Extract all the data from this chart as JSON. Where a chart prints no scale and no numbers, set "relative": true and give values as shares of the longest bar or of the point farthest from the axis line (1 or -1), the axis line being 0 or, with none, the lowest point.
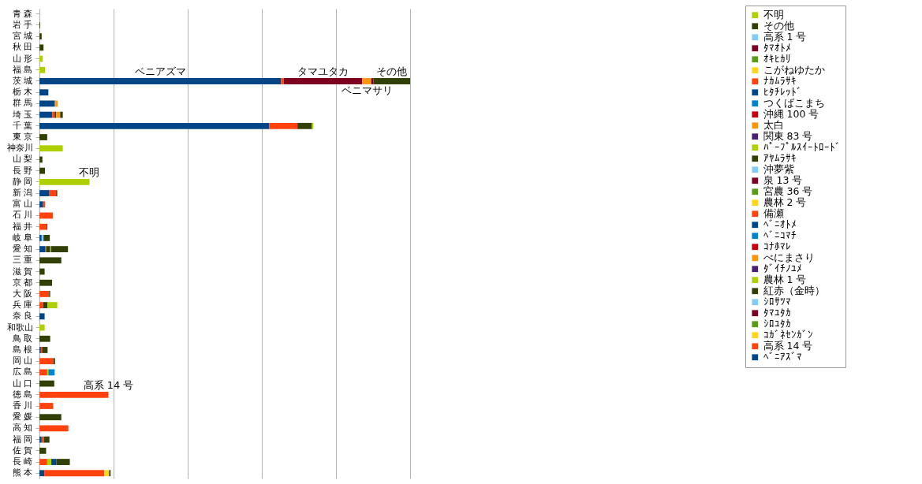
{
  "chart_data": {
    "type": "bar",
    "orientation": "horizontal",
    "stacked": true,
    "relative": true,
    "grid": "x",
    "legend": "top right",
    "categories": [
      "青 森",
      "岩 手",
      "宮 城",
      "秋 田",
      "山 形",
      "福 島",
      "茨 城",
      "栃 木",
      "群 馬",
      "埼 玉",
      "千 葉",
      "東 京",
      "神奈川",
      "山 梨",
      "長 野",
      "静 岡",
      "新 潟",
      "富 山",
      "石 川",
      "福 井",
      "岐 阜",
      "愛 知",
      "三 重",
      "滋 賀",
      "京 都",
      "大 阪",
      "兵 庫",
      "奈 良",
      "和歌山",
      "鳥 取",
      "島 根",
      "岡 山",
      "広 島",
      "山 口",
      "徳 島",
      "香 川",
      "愛 媛",
      "高 知",
      "福 岡",
      "佐 賀",
      "長 崎",
      "熊 本"
    ],
    "annotations": [
      {
        "text": "ベニアズマ",
        "x": 0.326,
        "y": "茨 城"
      },
      {
        "text": "タマユタカ",
        "x": 0.765,
        "y": "茨 城"
      },
      {
        "text": "その他",
        "x": 0.95,
        "y": "茨 城"
      },
      {
        "text": "ベニマサリ",
        "x": 0.883,
        "y": "茨 城"
      },
      {
        "text": "不明",
        "x": 0.135,
        "y": "静 岡"
      },
      {
        "text": "高系 14 号",
        "x": 0.186,
        "y": "徳 島"
      }
    ],
    "series": [
      {
        "name": "ﾍﾞﾆｱｽﾞﾏ",
        "color": "#004586",
        "values": [
          null,
          null,
          null,
          null,
          null,
          null,
          0.652,
          0.024,
          0.041,
          0.035,
          0.62,
          null,
          null,
          null,
          null,
          null,
          0.027,
          0.01,
          null,
          null,
          0.006,
          0.015,
          null,
          null,
          null,
          null,
          null,
          0.014,
          null,
          null,
          0.004,
          null,
          null,
          null,
          null,
          null,
          null,
          null,
          0.006,
          null,
          null,
          0.013
        ]
      },
      {
        "name": "高系 14 号",
        "color": "#ff420e",
        "values": [
          null,
          null,
          null,
          null,
          null,
          null,
          0.007,
          null,
          0.002,
          0.006,
          0.076,
          null,
          null,
          null,
          null,
          null,
          0.018,
          0.005,
          0.036,
          0.019,
          null,
          0.003,
          null,
          null,
          null,
          0.026,
          0.01,
          null,
          null,
          null,
          0.003,
          0.038,
          0.021,
          null,
          0.186,
          0.037,
          null,
          0.078,
          0.006,
          null,
          0.021,
          0.162
        ]
      },
      {
        "name": "ｺｶﾞﾈｾﾝｶﾞﾝ",
        "color": "#ffd320",
        "values": [
          null,
          null,
          null,
          null,
          null,
          null,
          null,
          null,
          null,
          null,
          null,
          null,
          null,
          null,
          null,
          null,
          null,
          null,
          null,
          null,
          null,
          null,
          null,
          null,
          null,
          null,
          null,
          null,
          null,
          null,
          null,
          null,
          null,
          null,
          null,
          null,
          null,
          null,
          null,
          null,
          null,
          0.013
        ]
      },
      {
        "name": "ｼﾛﾕﾀｶ",
        "color": "#579d1c",
        "values": [
          null,
          null,
          null,
          null,
          null,
          null,
          null,
          null,
          null,
          null,
          null,
          null,
          null,
          null,
          null,
          null,
          null,
          null,
          null,
          null,
          null,
          null,
          null,
          null,
          null,
          null,
          null,
          null,
          null,
          null,
          null,
          null,
          null,
          null,
          null,
          null,
          null,
          null,
          null,
          null,
          null,
          null
        ]
      },
      {
        "name": "ﾀﾏﾕﾀｶ",
        "color": "#7e0021",
        "values": [
          null,
          null,
          null,
          null,
          null,
          null,
          0.212,
          null,
          null,
          null,
          null,
          null,
          null,
          null,
          null,
          null,
          null,
          null,
          null,
          null,
          null,
          null,
          null,
          null,
          null,
          null,
          null,
          null,
          null,
          null,
          null,
          null,
          null,
          null,
          null,
          null,
          null,
          null,
          null,
          null,
          null,
          null
        ]
      },
      {
        "name": "ｼﾛｻﾂﾏ",
        "color": "#83caff",
        "values": [
          null,
          null,
          null,
          null,
          null,
          null,
          null,
          null,
          null,
          null,
          null,
          null,
          null,
          null,
          null,
          null,
          null,
          null,
          null,
          null,
          0.005,
          null,
          null,
          null,
          null,
          null,
          null,
          null,
          null,
          null,
          null,
          null,
          null,
          null,
          null,
          null,
          null,
          null,
          null,
          null,
          null,
          null
        ]
      },
      {
        "name": "紅赤（金時）",
        "color": "#314004",
        "values": [
          null,
          null,
          null,
          null,
          null,
          null,
          null,
          null,
          null,
          0.004,
          null,
          null,
          null,
          null,
          null,
          null,
          null,
          null,
          null,
          null,
          null,
          0.011,
          null,
          null,
          null,
          null,
          null,
          null,
          null,
          null,
          null,
          null,
          null,
          null,
          null,
          null,
          null,
          null,
          null,
          null,
          null,
          null
        ]
      },
      {
        "name": "農林 1 号",
        "color": "#aecf00",
        "values": [
          null,
          null,
          null,
          null,
          null,
          null,
          null,
          null,
          null,
          null,
          null,
          null,
          null,
          null,
          null,
          null,
          null,
          null,
          null,
          null,
          null,
          0.002,
          null,
          null,
          null,
          null,
          null,
          null,
          null,
          null,
          null,
          null,
          0.003,
          null,
          null,
          null,
          null,
          null,
          null,
          null,
          0.011,
          null
        ]
      },
      {
        "name": "ﾀﾞｲﾁﾉﾕﾒ",
        "color": "#4b1f6f",
        "values": [
          null,
          null,
          null,
          null,
          null,
          null,
          null,
          null,
          null,
          null,
          null,
          null,
          null,
          null,
          null,
          null,
          null,
          null,
          null,
          null,
          null,
          null,
          null,
          null,
          null,
          null,
          null,
          null,
          null,
          null,
          null,
          null,
          null,
          null,
          null,
          null,
          null,
          null,
          null,
          null,
          null,
          null
        ]
      },
      {
        "name": "べにまさり",
        "color": "#ff950e",
        "values": [
          null,
          null,
          null,
          null,
          null,
          null,
          0.024,
          null,
          0.006,
          0.011,
          null,
          null,
          null,
          null,
          null,
          null,
          null,
          null,
          null,
          null,
          null,
          null,
          null,
          null,
          null,
          null,
          null,
          null,
          null,
          null,
          null,
          null,
          null,
          null,
          null,
          null,
          null,
          null,
          null,
          null,
          null,
          null
        ]
      },
      {
        "name": "ｺﾅﾎﾏﾚ",
        "color": "#c5000b",
        "values": [
          null,
          null,
          null,
          null,
          null,
          null,
          null,
          null,
          null,
          null,
          null,
          null,
          null,
          null,
          null,
          null,
          null,
          null,
          null,
          null,
          null,
          null,
          null,
          null,
          null,
          null,
          null,
          null,
          null,
          null,
          null,
          null,
          null,
          null,
          null,
          null,
          null,
          null,
          null,
          null,
          null,
          null
        ]
      },
      {
        "name": "ﾍﾞﾆｺﾏﾁ",
        "color": "#0084d1",
        "values": [
          null,
          null,
          null,
          null,
          null,
          null,
          null,
          null,
          null,
          null,
          null,
          null,
          null,
          null,
          null,
          null,
          null,
          null,
          null,
          null,
          null,
          null,
          null,
          null,
          null,
          null,
          null,
          null,
          null,
          null,
          null,
          null,
          0.017,
          null,
          null,
          null,
          null,
          null,
          null,
          null,
          null,
          null
        ]
      },
      {
        "name": "ﾍﾞﾆｵﾄﾒ",
        "color": "#004586",
        "values": [
          null,
          null,
          null,
          null,
          null,
          null,
          null,
          null,
          null,
          null,
          null,
          null,
          null,
          null,
          null,
          null,
          null,
          null,
          null,
          null,
          null,
          null,
          null,
          null,
          null,
          null,
          null,
          null,
          null,
          null,
          null,
          null,
          null,
          null,
          null,
          null,
          null,
          null,
          null,
          null,
          0.014,
          null
        ]
      },
      {
        "name": "備瀬",
        "color": "#ff420e",
        "values": [
          null,
          null,
          null,
          null,
          null,
          null,
          null,
          null,
          null,
          null,
          null,
          null,
          null,
          null,
          null,
          null,
          null,
          null,
          null,
          null,
          null,
          null,
          null,
          null,
          null,
          null,
          null,
          null,
          null,
          null,
          null,
          null,
          null,
          null,
          null,
          null,
          null,
          null,
          null,
          null,
          null,
          null
        ]
      },
      {
        "name": "農林 2 号",
        "color": "#ffd320",
        "values": [
          null,
          null,
          null,
          null,
          null,
          null,
          null,
          null,
          null,
          null,
          null,
          null,
          null,
          null,
          null,
          null,
          null,
          null,
          null,
          null,
          null,
          null,
          null,
          null,
          null,
          null,
          null,
          null,
          null,
          null,
          null,
          null,
          null,
          null,
          null,
          null,
          null,
          null,
          null,
          null,
          null,
          null
        ]
      },
      {
        "name": "宮農 36 号",
        "color": "#579d1c",
        "values": [
          null,
          null,
          null,
          null,
          null,
          null,
          null,
          null,
          null,
          null,
          null,
          null,
          null,
          null,
          null,
          null,
          null,
          null,
          null,
          null,
          null,
          null,
          null,
          null,
          null,
          null,
          null,
          null,
          null,
          null,
          null,
          null,
          null,
          null,
          null,
          null,
          null,
          null,
          null,
          null,
          null,
          null
        ]
      },
      {
        "name": "泉 13 号",
        "color": "#7e0021",
        "values": [
          null,
          null,
          null,
          null,
          null,
          null,
          0.006,
          null,
          null,
          null,
          null,
          null,
          null,
          null,
          null,
          null,
          null,
          null,
          null,
          null,
          null,
          null,
          null,
          null,
          null,
          null,
          null,
          null,
          null,
          null,
          null,
          null,
          null,
          null,
          null,
          null,
          null,
          null,
          null,
          null,
          null,
          null
        ]
      },
      {
        "name": "沖夢紫",
        "color": "#83caff",
        "values": [
          null,
          null,
          null,
          null,
          null,
          null,
          null,
          null,
          null,
          null,
          null,
          null,
          null,
          null,
          null,
          null,
          null,
          null,
          null,
          null,
          null,
          null,
          null,
          null,
          null,
          null,
          null,
          null,
          null,
          null,
          null,
          null,
          null,
          null,
          null,
          null,
          null,
          null,
          null,
          null,
          null,
          null
        ]
      },
      {
        "name": "ｱﾔﾑﾗｻｷ",
        "color": "#314004",
        "values": [
          null,
          null,
          null,
          null,
          null,
          null,
          null,
          null,
          null,
          null,
          null,
          null,
          null,
          null,
          null,
          null,
          null,
          null,
          null,
          null,
          null,
          null,
          null,
          null,
          null,
          null,
          null,
          null,
          null,
          null,
          null,
          null,
          null,
          null,
          null,
          null,
          null,
          null,
          null,
          null,
          null,
          null
        ]
      },
      {
        "name": "ﾊﾟｰﾌﾟﾙｽｲｰﾄﾛｰﾄﾞ",
        "color": "#aecf00",
        "values": [
          null,
          null,
          null,
          null,
          null,
          null,
          null,
          null,
          null,
          null,
          null,
          null,
          null,
          null,
          null,
          null,
          null,
          null,
          null,
          null,
          null,
          null,
          null,
          null,
          null,
          null,
          null,
          null,
          null,
          null,
          null,
          null,
          null,
          null,
          null,
          null,
          null,
          null,
          null,
          null,
          null,
          null
        ]
      },
      {
        "name": "関東 83 号",
        "color": "#4b1f6f",
        "values": [
          null,
          null,
          null,
          null,
          null,
          null,
          null,
          null,
          null,
          null,
          null,
          null,
          null,
          null,
          null,
          null,
          null,
          null,
          null,
          null,
          null,
          null,
          null,
          null,
          null,
          null,
          null,
          null,
          null,
          null,
          null,
          null,
          null,
          null,
          null,
          null,
          null,
          null,
          null,
          null,
          null,
          null
        ]
      },
      {
        "name": "太白",
        "color": "#ff950e",
        "values": [
          null,
          null,
          null,
          null,
          null,
          null,
          null,
          null,
          null,
          null,
          null,
          null,
          null,
          null,
          null,
          null,
          null,
          null,
          null,
          null,
          null,
          null,
          null,
          null,
          null,
          null,
          null,
          null,
          null,
          null,
          null,
          null,
          null,
          null,
          null,
          null,
          null,
          null,
          null,
          null,
          null,
          null
        ]
      },
      {
        "name": "沖縄 100 号",
        "color": "#c5000b",
        "values": [
          null,
          null,
          null,
          null,
          null,
          null,
          null,
          null,
          null,
          null,
          null,
          null,
          null,
          null,
          null,
          null,
          null,
          null,
          null,
          null,
          null,
          null,
          null,
          null,
          null,
          null,
          null,
          null,
          null,
          null,
          null,
          null,
          null,
          null,
          null,
          null,
          null,
          null,
          null,
          null,
          null,
          null
        ]
      },
      {
        "name": "つくばこまち",
        "color": "#0084d1",
        "values": [
          null,
          null,
          null,
          null,
          null,
          null,
          null,
          null,
          null,
          null,
          null,
          null,
          null,
          null,
          null,
          null,
          null,
          null,
          null,
          null,
          null,
          null,
          null,
          null,
          null,
          null,
          null,
          null,
          null,
          null,
          null,
          null,
          null,
          null,
          null,
          null,
          null,
          null,
          null,
          null,
          null,
          null
        ]
      },
      {
        "name": "ﾋﾀﾁﾚｯﾄﾞ",
        "color": "#004586",
        "values": [
          null,
          null,
          null,
          null,
          null,
          null,
          null,
          null,
          null,
          null,
          null,
          null,
          null,
          null,
          null,
          null,
          null,
          null,
          null,
          null,
          null,
          null,
          null,
          null,
          null,
          null,
          null,
          null,
          null,
          null,
          null,
          null,
          null,
          null,
          null,
          null,
          null,
          null,
          null,
          null,
          null,
          null
        ]
      },
      {
        "name": "ﾅｶﾑﾗｻｷ",
        "color": "#ff420e",
        "values": [
          null,
          null,
          null,
          null,
          null,
          null,
          null,
          null,
          null,
          null,
          null,
          null,
          null,
          null,
          null,
          null,
          null,
          null,
          null,
          null,
          null,
          null,
          null,
          null,
          null,
          null,
          null,
          null,
          null,
          null,
          null,
          null,
          null,
          null,
          null,
          null,
          null,
          null,
          null,
          null,
          null,
          null
        ]
      },
      {
        "name": "こがねゆたか",
        "color": "#ffd320",
        "values": [
          null,
          null,
          null,
          null,
          null,
          null,
          null,
          null,
          null,
          null,
          null,
          null,
          null,
          null,
          null,
          null,
          null,
          null,
          null,
          null,
          null,
          null,
          null,
          null,
          null,
          null,
          null,
          null,
          null,
          null,
          null,
          null,
          null,
          null,
          null,
          null,
          null,
          null,
          null,
          null,
          null,
          null
        ]
      },
      {
        "name": "ｵｷﾋｶﾘ",
        "color": "#579d1c",
        "values": [
          null,
          null,
          null,
          null,
          null,
          null,
          null,
          null,
          null,
          null,
          null,
          null,
          null,
          null,
          null,
          null,
          null,
          null,
          null,
          null,
          null,
          null,
          null,
          null,
          null,
          null,
          null,
          null,
          null,
          null,
          null,
          null,
          null,
          null,
          null,
          null,
          null,
          null,
          null,
          null,
          null,
          null
        ]
      },
      {
        "name": "ﾀﾏｵﾄﾒ",
        "color": "#7e0021",
        "values": [
          null,
          null,
          null,
          null,
          null,
          null,
          null,
          null,
          null,
          null,
          null,
          null,
          null,
          null,
          null,
          null,
          null,
          null,
          null,
          null,
          null,
          null,
          null,
          null,
          null,
          null,
          null,
          null,
          null,
          null,
          null,
          null,
          null,
          null,
          null,
          null,
          null,
          null,
          null,
          null,
          null,
          null
        ]
      },
      {
        "name": "高系 1 号",
        "color": "#83caff",
        "values": [
          null,
          null,
          null,
          null,
          null,
          null,
          null,
          null,
          null,
          null,
          null,
          null,
          null,
          null,
          null,
          null,
          null,
          null,
          null,
          null,
          null,
          null,
          null,
          null,
          null,
          null,
          null,
          null,
          null,
          null,
          null,
          null,
          null,
          null,
          null,
          null,
          null,
          null,
          null,
          null,
          null,
          null
        ]
      },
      {
        "name": "その他",
        "color": "#314004",
        "values": [
          null,
          0.002,
          0.006,
          0.011,
          null,
          null,
          0.099,
          null,
          null,
          0.007,
          0.039,
          0.021,
          null,
          0.008,
          0.015,
          null,
          0.003,
          null,
          null,
          0.002,
          0.017,
          0.046,
          0.059,
          0.014,
          0.034,
          0.003,
          0.012,
          null,
          null,
          0.029,
          0.015,
          0.004,
          null,
          0.04,
          null,
          null,
          0.059,
          null,
          0.015,
          0.018,
          0.036,
          0.004
        ]
      },
      {
        "name": "不明",
        "color": "#aecf00",
        "values": [
          null,
          null,
          null,
          null,
          0.009,
          0.015,
          null,
          null,
          null,
          null,
          0.004,
          null,
          0.063,
          null,
          null,
          0.135,
          null,
          null,
          null,
          null,
          null,
          null,
          null,
          null,
          null,
          null,
          0.026,
          null,
          0.014,
          null,
          null,
          null,
          null,
          null,
          null,
          null,
          null,
          null,
          null,
          null,
          null,
          null
        ]
      }
    ]
  }
}
